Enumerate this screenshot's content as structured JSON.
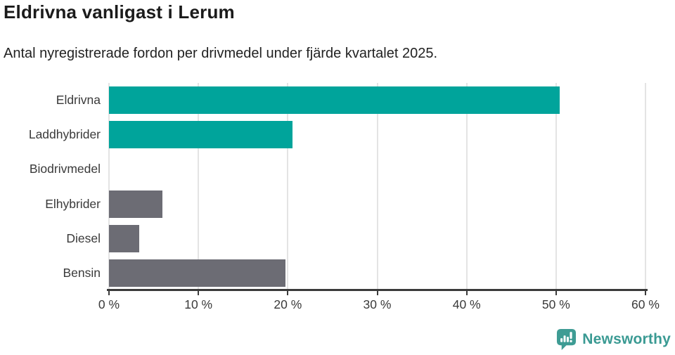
{
  "chart_data": {
    "type": "bar",
    "orientation": "horizontal",
    "title": "Eldrivna vanligast i Lerum",
    "subtitle": "Antal nyregistrerade fordon per drivmedel under fjärde kvartalet 2025.",
    "categories": [
      "Eldrivna",
      "Laddhybrider",
      "Biodrivmedel",
      "Elhybrider",
      "Diesel",
      "Bensin"
    ],
    "values": [
      50.4,
      20.5,
      0,
      6.0,
      3.4,
      19.7
    ],
    "unit": "%",
    "xlim": [
      0,
      60
    ],
    "x_tick_values": [
      0,
      10,
      20,
      30,
      40,
      50,
      60
    ],
    "x_tick_labels": [
      "0 %",
      "10 %",
      "20 %",
      "30 %",
      "40 %",
      "50 %",
      "60 %"
    ],
    "bar_colors": [
      "#00a49b",
      "#00a49b",
      "#00a49b",
      "#6c6c74",
      "#6c6c74",
      "#6c6c74"
    ],
    "grid": true,
    "legend": false,
    "gridline_color": "#e4e4e4",
    "axis_color": "#3b3b3b"
  },
  "footer": {
    "brand": "Newsworthy",
    "brand_color": "#3a9a93"
  }
}
